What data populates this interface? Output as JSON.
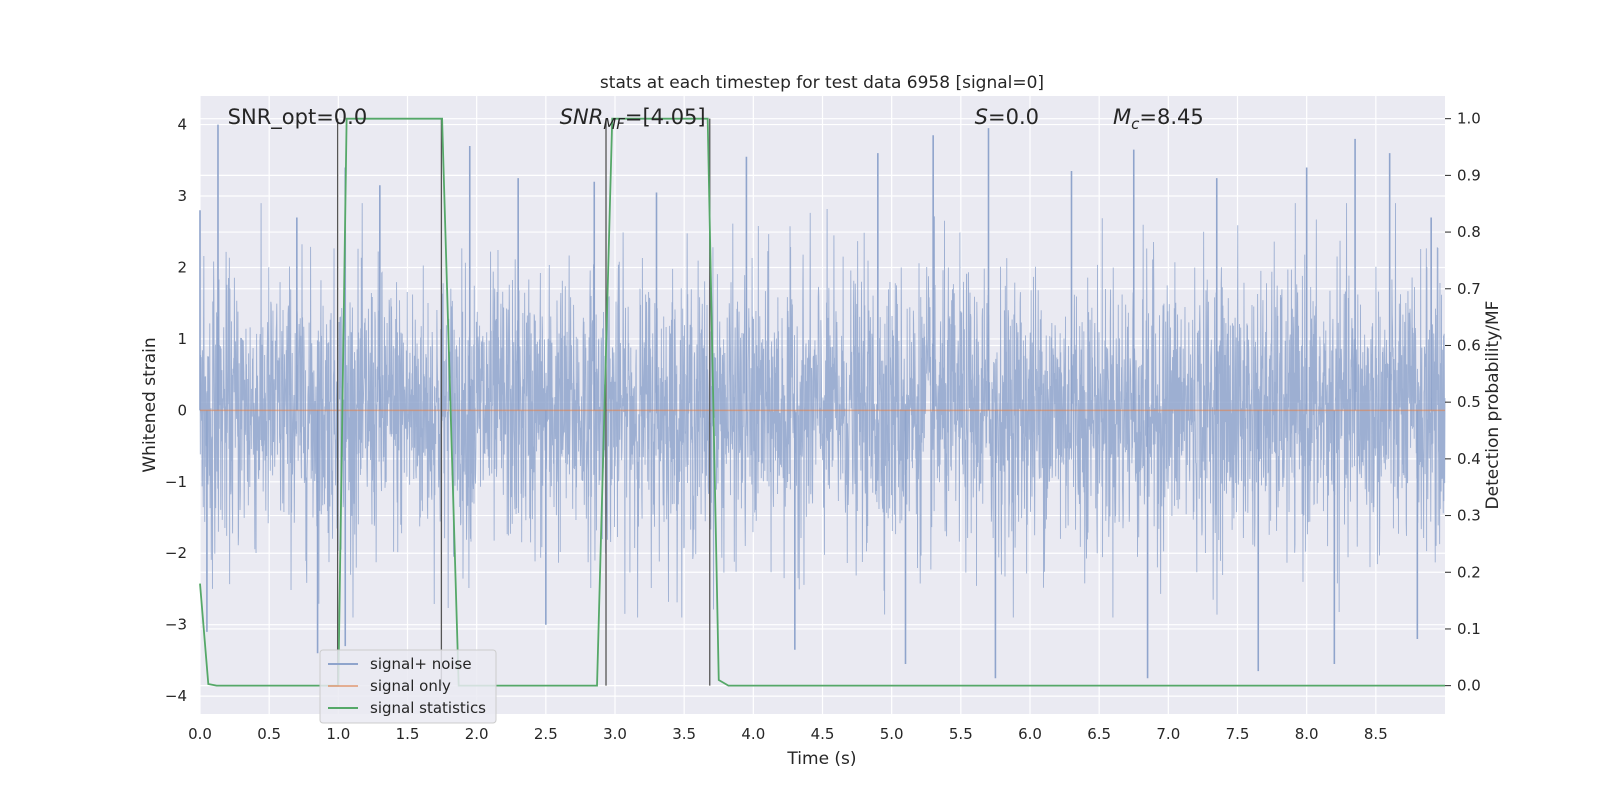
{
  "chart_data": {
    "type": "line",
    "title": "stats at each timestep for test data 6958 [signal=0]",
    "xlabel": "Time (s)",
    "ylabel": "Whitened strain",
    "y2label": "Detection probability/MF",
    "xlim": [
      0.0,
      9.0
    ],
    "ylim": [
      -4.25,
      4.4
    ],
    "y2lim": [
      -0.05,
      1.04
    ],
    "xticks": [
      0.0,
      0.5,
      1.0,
      1.5,
      2.0,
      2.5,
      3.0,
      3.5,
      4.0,
      4.5,
      5.0,
      5.5,
      6.0,
      6.5,
      7.0,
      7.5,
      8.0,
      8.5
    ],
    "yticks": [
      -4,
      -3,
      -2,
      -1,
      0,
      1,
      2,
      3,
      4
    ],
    "y2ticks": [
      0.0,
      0.1,
      0.2,
      0.3,
      0.4,
      0.5,
      0.6,
      0.7,
      0.8,
      0.9,
      1.0
    ],
    "grid": true,
    "legend_location": "lower-left",
    "annotations": [
      {
        "text": "SNR_opt=0.0",
        "x": 0.2
      },
      {
        "text_main": "SNR",
        "text_sub": "MF",
        "text_rest": "=[4.05]",
        "x": 2.6
      },
      {
        "text_main": "S",
        "text_rest": "=0.0",
        "x": 5.6
      },
      {
        "text_main": "M",
        "text_sub": "c",
        "text_rest": "=8.45",
        "x": 6.6
      }
    ],
    "series": [
      {
        "name": "signal+ noise",
        "color": "#8fa4cc",
        "axis": "left",
        "style": "noise",
        "envelope_peaks": [
          {
            "x": 0.0,
            "y": 2.8
          },
          {
            "x": 0.13,
            "y": 4.0
          },
          {
            "x": 0.7,
            "y": 2.7
          },
          {
            "x": 1.05,
            "y": 3.4
          },
          {
            "x": 1.3,
            "y": 3.15
          },
          {
            "x": 1.95,
            "y": 3.7
          },
          {
            "x": 2.3,
            "y": 3.25
          },
          {
            "x": 2.85,
            "y": 3.2
          },
          {
            "x": 3.3,
            "y": 3.05
          },
          {
            "x": 3.95,
            "y": 3.55
          },
          {
            "x": 4.9,
            "y": 3.6
          },
          {
            "x": 5.3,
            "y": 3.85
          },
          {
            "x": 5.7,
            "y": 3.95
          },
          {
            "x": 6.3,
            "y": 3.35
          },
          {
            "x": 6.75,
            "y": 3.65
          },
          {
            "x": 7.35,
            "y": 3.25
          },
          {
            "x": 8.0,
            "y": 3.4
          },
          {
            "x": 8.35,
            "y": 3.8
          },
          {
            "x": 8.6,
            "y": 3.6
          },
          {
            "x": 8.9,
            "y": 2.7
          }
        ],
        "envelope_troughs": [
          {
            "x": 0.05,
            "y": -3.1
          },
          {
            "x": 0.85,
            "y": -3.4
          },
          {
            "x": 1.05,
            "y": -3.3
          },
          {
            "x": 2.5,
            "y": -3.0
          },
          {
            "x": 4.3,
            "y": -3.35
          },
          {
            "x": 5.1,
            "y": -3.55
          },
          {
            "x": 5.75,
            "y": -3.75
          },
          {
            "x": 6.85,
            "y": -3.75
          },
          {
            "x": 7.65,
            "y": -3.65
          },
          {
            "x": 8.2,
            "y": -3.55
          },
          {
            "x": 8.8,
            "y": -3.2
          }
        ]
      },
      {
        "name": "signal only",
        "color": "#dd8452",
        "axis": "left",
        "x": [
          0.0,
          9.0
        ],
        "y": [
          0.0,
          0.0
        ]
      },
      {
        "name": "signal statistics",
        "color": "#55a868",
        "axis": "right",
        "x": [
          0.0,
          0.06,
          0.12,
          1.0,
          1.06,
          1.75,
          1.87,
          2.87,
          2.98,
          3.67,
          3.75,
          3.82,
          9.0
        ],
        "y": [
          0.18,
          0.003,
          0.0,
          0.0,
          1.0,
          1.0,
          0.0,
          0.0,
          1.0,
          1.0,
          0.01,
          0.0,
          0.0
        ]
      }
    ],
    "vertical_markers": [
      {
        "x": 0.995,
        "y_range": [
          0.0,
          1.0
        ]
      },
      {
        "x": 1.745,
        "y_range": [
          0.0,
          1.0
        ]
      },
      {
        "x": 2.935,
        "y_range": [
          0.0,
          1.0
        ]
      },
      {
        "x": 3.685,
        "y_range": [
          0.0,
          1.0
        ]
      }
    ]
  }
}
